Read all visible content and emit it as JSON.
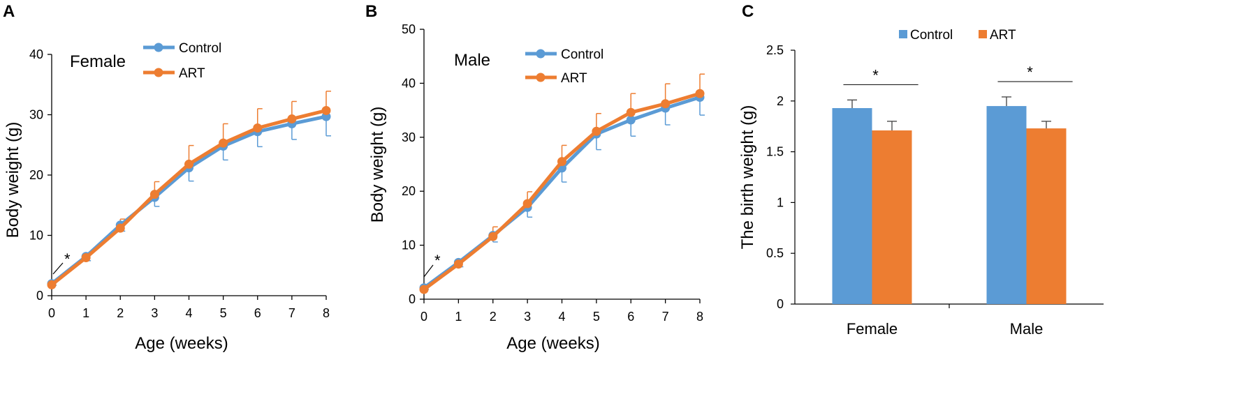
{
  "colors": {
    "control": "#5b9bd5",
    "art": "#ed7d31",
    "axis": "#000000"
  },
  "chart_data": [
    {
      "panel": "A",
      "type": "line",
      "subtitle": "Female",
      "xlabel": "Age (weeks)",
      "ylabel": "Body weight (g)",
      "x": [
        0,
        1,
        2,
        3,
        4,
        5,
        6,
        7,
        8
      ],
      "ylim": [
        0,
        40
      ],
      "yticks": [
        0,
        10,
        20,
        30,
        40
      ],
      "legend": [
        "Control",
        "ART"
      ],
      "annotation": "*",
      "series": [
        {
          "name": "Control",
          "values": [
            2.0,
            6.5,
            11.7,
            16.3,
            21.2,
            24.8,
            27.2,
            28.5,
            29.7
          ],
          "err": [
            0.3,
            0.7,
            1.0,
            1.5,
            2.2,
            2.3,
            2.5,
            2.6,
            3.2
          ]
        },
        {
          "name": "ART",
          "values": [
            1.8,
            6.3,
            11.2,
            16.8,
            21.8,
            25.3,
            27.8,
            29.3,
            30.7
          ],
          "err": [
            0.3,
            0.7,
            1.5,
            2.1,
            3.1,
            3.2,
            3.2,
            2.9,
            3.2
          ]
        }
      ]
    },
    {
      "panel": "B",
      "type": "line",
      "subtitle": "Male",
      "xlabel": "Age (weeks)",
      "ylabel": "Body weight (g)",
      "x": [
        0,
        1,
        2,
        3,
        4,
        5,
        6,
        7,
        8
      ],
      "ylim": [
        0,
        50
      ],
      "yticks": [
        0,
        10,
        20,
        30,
        40,
        50
      ],
      "legend": [
        "Control",
        "ART"
      ],
      "annotation": "*",
      "series": [
        {
          "name": "Control",
          "values": [
            2.1,
            6.8,
            11.8,
            17.0,
            24.3,
            30.6,
            33.2,
            35.4,
            37.4
          ],
          "err": [
            0.3,
            0.8,
            1.2,
            1.8,
            2.6,
            2.9,
            3.0,
            3.1,
            3.3
          ]
        },
        {
          "name": "ART",
          "values": [
            1.8,
            6.5,
            11.6,
            17.7,
            25.5,
            31.1,
            34.6,
            36.2,
            38.1
          ],
          "err": [
            0.3,
            0.8,
            1.8,
            2.2,
            3.0,
            3.3,
            3.5,
            3.7,
            3.6
          ]
        }
      ]
    },
    {
      "panel": "C",
      "type": "bar",
      "ylabel": "The birth weight (g)",
      "categories": [
        "Female",
        "Male"
      ],
      "ylim": [
        0,
        2.5
      ],
      "yticks": [
        "0",
        "0.5",
        "1",
        "1.5",
        "2",
        "2.5"
      ],
      "legend": [
        "Control",
        "ART"
      ],
      "annotation": "*",
      "series": [
        {
          "name": "Control",
          "values": [
            1.93,
            1.95
          ],
          "err": [
            0.08,
            0.09
          ]
        },
        {
          "name": "ART",
          "values": [
            1.71,
            1.73
          ],
          "err": [
            0.09,
            0.07
          ]
        }
      ]
    }
  ]
}
